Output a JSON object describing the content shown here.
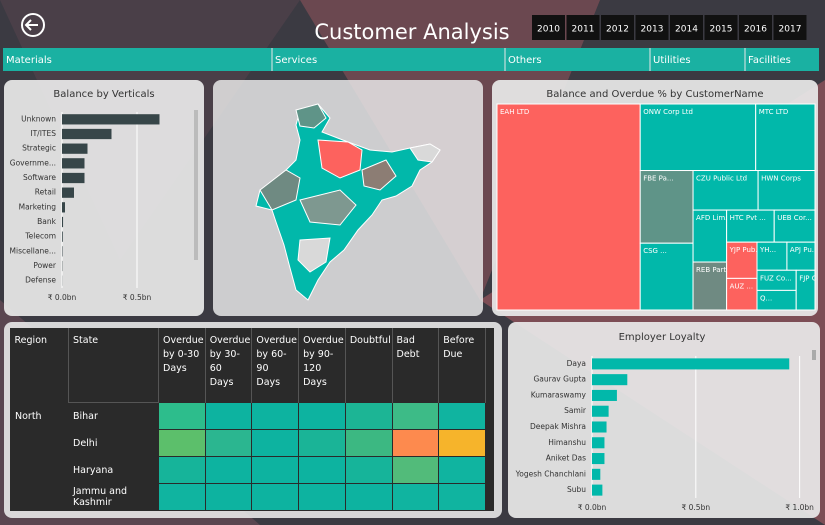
{
  "header": {
    "title": "Customer Analysis",
    "years": [
      "2010",
      "2011",
      "2012",
      "2013",
      "2014",
      "2015",
      "2016",
      "2017"
    ]
  },
  "tabs": [
    "Materials",
    "Services",
    "Others",
    "Utilities",
    "Facilities"
  ],
  "chart_data": [
    {
      "type": "hbar",
      "title": "Balance by Verticals",
      "categories": [
        "Unknown",
        "IT/ITES",
        "Strategic",
        "Governme...",
        "Software",
        "Retail",
        "Marketing",
        "Bank",
        "Telecom",
        "Miscellane...",
        "Power",
        "Defense"
      ],
      "values": [
        0.65,
        0.33,
        0.17,
        0.15,
        0.15,
        0.08,
        0.02,
        0.007,
        0.005,
        0.003,
        0.002,
        0.001
      ],
      "color": "#374649",
      "xlim": [
        0,
        0.84
      ],
      "xticks": [
        {
          "value": 0,
          "label": "₹ 0.0bn"
        },
        {
          "value": 0.5,
          "label": "₹ 0.5bn"
        }
      ],
      "grid": true
    },
    {
      "type": "treemap",
      "title": "Balance and Overdue % by CustomerName",
      "categories": [
        "EAH LTD",
        "ONW Corp Ltd",
        "MTC LTD",
        "FBE Pa...",
        "CSG ...",
        "CZU Public Ltd",
        "HWN Corps",
        "AFD Lim...",
        "REB Partners",
        "HTC Pvt ...",
        "UEB Cor...",
        "YJP Pub...",
        "AUZ ...",
        "YH...",
        "APJ Pu...",
        "FUZ Co...",
        "Q...",
        "FJP Co..."
      ],
      "values": [
        28420,
        7400,
        3800,
        3700,
        3400,
        2480,
        2170,
        1680,
        1550,
        1470,
        1260,
        1060,
        925,
        810,
        760,
        760,
        740,
        720
      ],
      "colors": [
        "#fd625e",
        "#01b8aa",
        "#01b8aa",
        "#5f9488",
        "#01b8aa",
        "#01b8aa",
        "#01b8aa",
        "#01b8aa",
        "#6f8a82",
        "#01b8aa",
        "#01b8aa",
        "#fd625e",
        "#fd625e",
        "#01b8aa",
        "#01b8aa",
        "#01b8aa",
        "#01b8aa",
        "#01b8aa"
      ]
    },
    {
      "type": "hbar",
      "title": "Employer Loyalty",
      "categories": [
        "Daya",
        "Gaurav Gupta",
        "Kumaraswamy",
        "Samir",
        "Deepak Mishra",
        "Himanshu",
        "Aniket Das",
        "Yogesh Chanchlani",
        "Subu"
      ],
      "values": [
        0.95,
        0.17,
        0.12,
        0.08,
        0.07,
        0.06,
        0.06,
        0.04,
        0.05
      ],
      "color": "#01b8aa",
      "xlim": [
        0,
        1.05
      ],
      "xticks": [
        {
          "value": 0,
          "label": "₹ 0.0bn"
        },
        {
          "value": 0.5,
          "label": "₹ 0.5bn"
        },
        {
          "value": 1,
          "label": "₹ 1.0bn"
        }
      ],
      "grid": true
    }
  ],
  "table": {
    "columns": [
      "Region",
      "State",
      "Overdue by 0-30 Days",
      "Overdue by 30-60 Days",
      "Overdue by 60-90 Days",
      "Overdue by 90-120 Days",
      "Doubtful",
      "Bad Debt",
      "Before Due"
    ],
    "rows": [
      [
        "North",
        "Bihar"
      ],
      [
        null,
        "Delhi"
      ],
      [
        null,
        "Haryana"
      ],
      [
        null,
        "Jammu and Kashmir"
      ]
    ],
    "cell_colors": [
      [
        "#2dbd8c",
        "#0db3a0",
        "#0db3a0",
        "#0db3a0",
        "#1cb595",
        "#3dbb87",
        "#10b4a0"
      ],
      [
        "#5cbf6b",
        "#2bb690",
        "#0db3a0",
        "#1ab497",
        "#3cb882",
        "#fd8a4e",
        "#f6b42b"
      ],
      [
        "#16b49a",
        "#0db3a0",
        "#0db3a0",
        "#0db3a0",
        "#16b49a",
        "#52bb7a",
        "#10b4a0"
      ],
      [
        "#10b4a0",
        "#0db3a0",
        "#0db3a0",
        "#0db3a0",
        "#0db3a0",
        "#10b4a0",
        "#10b4a0"
      ]
    ]
  }
}
